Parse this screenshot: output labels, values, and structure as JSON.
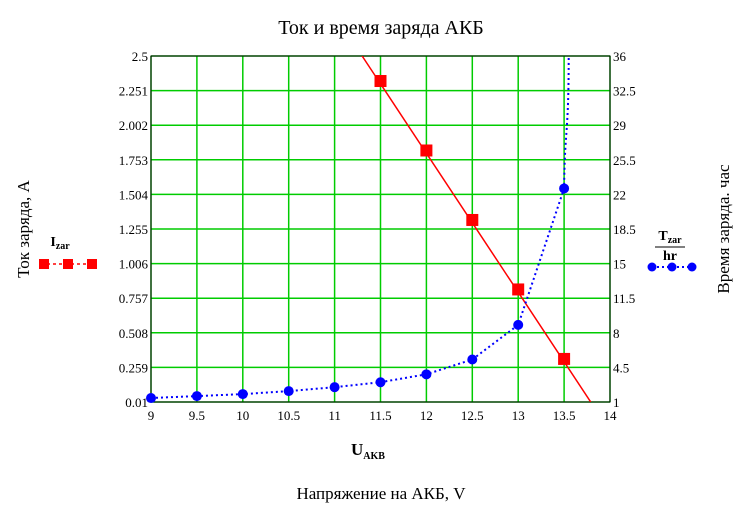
{
  "chart_data": {
    "type": "line",
    "title": "Ток и время заряда АКБ",
    "xlabel": "Напряжение на АКБ, V",
    "x_variable": {
      "main": "U",
      "sub": "AKB"
    },
    "ylabel_left": "Ток заряда, А",
    "ylabel_right": "Время заряда. час",
    "xlim": [
      9,
      14
    ],
    "ylim_left": [
      0.01,
      2.5
    ],
    "ylim_right": [
      1,
      36
    ],
    "x_ticks": [
      "9",
      "9.5",
      "10",
      "10.5",
      "11",
      "11.5",
      "12",
      "12.5",
      "13",
      "13.5",
      "14"
    ],
    "y_left_ticks": [
      "0.01",
      "0.259",
      "0.508",
      "0.757",
      "1.006",
      "1.255",
      "1.504",
      "1.753",
      "2.002",
      "2.251",
      "2.5"
    ],
    "y_right_ticks": [
      "1",
      "4.5",
      "8",
      "11.5",
      "15",
      "18.5",
      "22",
      "25.5",
      "29",
      "32.5",
      "36"
    ],
    "grid": true,
    "grid_color": "#00cc00",
    "series": [
      {
        "legend": {
          "main": "I",
          "sub": "zar"
        },
        "axis": "left",
        "color": "#ff0000",
        "line_style": "solid",
        "marker": "square",
        "line_x": [
          11.3,
          13.79
        ],
        "line_y": [
          2.5,
          0.01
        ],
        "x": [
          11.5,
          12,
          12.5,
          13,
          13.5
        ],
        "y": [
          2.32,
          1.82,
          1.32,
          0.82,
          0.32
        ]
      },
      {
        "legend": {
          "main": "T",
          "sub": "zar",
          "denominator": "hr"
        },
        "axis": "right",
        "color": "#0000ff",
        "line_style": "dotted",
        "marker": "circle",
        "x": [
          9,
          9.5,
          10,
          10.5,
          11,
          11.5,
          12,
          12.5,
          13,
          13.5
        ],
        "y": [
          1.4,
          1.6,
          1.8,
          2.1,
          2.5,
          3.0,
          3.8,
          5.3,
          8.8,
          22.6
        ],
        "asymptote_x": 13.55
      }
    ]
  }
}
